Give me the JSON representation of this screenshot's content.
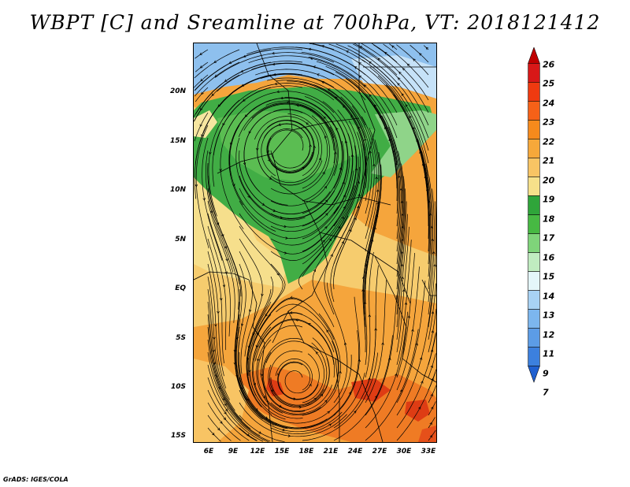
{
  "title": "WBPT [C] and Sreamline at 700hPa, VT: 2018121412",
  "credit": "GrADS: IGES/COLA",
  "lat_labels": [
    "20N",
    "15N",
    "10N",
    "5N",
    "EQ",
    "5S",
    "10S",
    "15S"
  ],
  "lon_labels": [
    "6E",
    "9E",
    "12E",
    "15E",
    "18E",
    "21E",
    "24E",
    "27E",
    "30E",
    "33E"
  ],
  "colorbar": {
    "labels": [
      "26",
      "25",
      "24",
      "23",
      "22",
      "21",
      "20",
      "19",
      "18",
      "17",
      "16",
      "15",
      "14",
      "13",
      "12",
      "11",
      "9",
      "7"
    ],
    "colors": [
      "#c00000",
      "#d81818",
      "#ef3a10",
      "#f66118",
      "#f68a1c",
      "#f6a83a",
      "#f8c464",
      "#f6e08a",
      "#2fa53a",
      "#47b943",
      "#7fd47a",
      "#c0ecc0",
      "#e4f6fa",
      "#a8d2f4",
      "#7cb6ee",
      "#5c9ce6",
      "#3c80de",
      "#2060d0"
    ]
  },
  "map": {
    "region": "Africa",
    "lon_range": [
      4,
      34
    ],
    "lat_range": [
      -16,
      24
    ],
    "variable": "Wet-bulb potential temperature (C) with 700hPa streamlines",
    "colors": {
      "blue": "#8ec0ee",
      "green": "#41ad45",
      "light_green": "#8fd489",
      "yellow": "#f6df8c",
      "orange": "#f5a53c",
      "dark_orange": "#ef7b24",
      "red": "#de3c14"
    }
  }
}
